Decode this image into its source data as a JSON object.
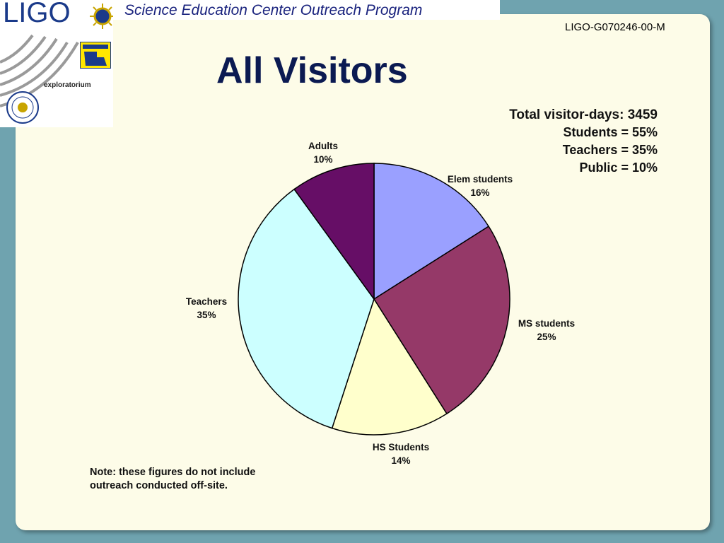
{
  "header": {
    "logo_text": "LIGO",
    "program_title": "Science Education Center Outreach Program",
    "doc_id": "LIGO-G070246-00-M",
    "partner_logo": "exploratorium"
  },
  "slide": {
    "title": "All Visitors",
    "summary": {
      "total": "Total visitor-days: 3459",
      "students": "Students = 55%",
      "teachers": "Teachers = 35%",
      "public": "Public = 10%"
    },
    "note_line1": "Note: these figures do not include",
    "note_line2": "outreach conducted off-site."
  },
  "chart_data": {
    "type": "pie",
    "title": "",
    "slices": [
      {
        "name": "Elem students",
        "value": 16,
        "label": "16%",
        "color": "#9aa0ff"
      },
      {
        "name": "MS students",
        "value": 25,
        "label": "25%",
        "color": "#953968"
      },
      {
        "name": "HS Students",
        "value": 14,
        "label": "14%",
        "color": "#ffffcc"
      },
      {
        "name": "Teachers",
        "value": 35,
        "label": "35%",
        "color": "#ccffff"
      },
      {
        "name": "Adults",
        "value": 10,
        "label": "10%",
        "color": "#660e66"
      }
    ]
  },
  "colors": {
    "background": "#6fa3af",
    "panel": "#fdfce8",
    "title": "#0b1a52"
  }
}
